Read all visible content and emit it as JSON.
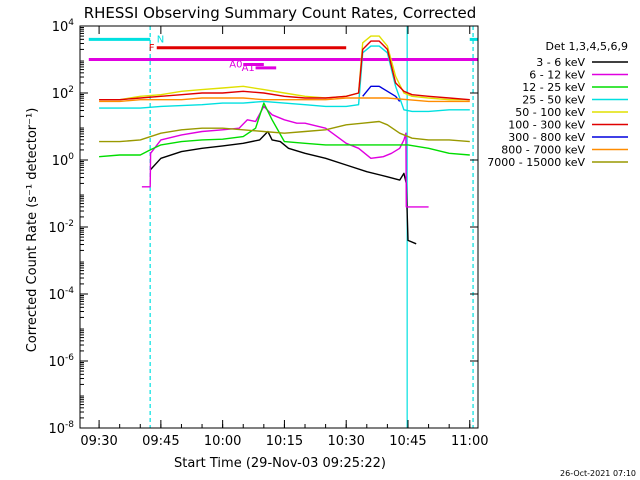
{
  "chart_data": {
    "type": "line",
    "title": "RHESSI Observing Summary Count Rates, Corrected",
    "xlabel": "Start Time (29-Nov-03 09:25:22)",
    "ylabel": "Corrected Count Rate (s⁻¹ detector⁻¹)",
    "footer": "26-Oct-2021 07:10",
    "x_range": [
      "09:25:22",
      "11:02:00"
    ],
    "x_ticks": [
      {
        "time": "09:30",
        "min": 30
      },
      {
        "time": "09:45",
        "min": 45
      },
      {
        "time": "10:00",
        "min": 60
      },
      {
        "time": "10:15",
        "min": 75
      },
      {
        "time": "10:30",
        "min": 90
      },
      {
        "time": "10:45",
        "min": 105
      },
      {
        "time": "11:00",
        "min": 120
      }
    ],
    "y_log": true,
    "y_range_exp": [
      -8,
      4
    ],
    "y_ticks": [
      {
        "base": "10",
        "exp": "4",
        "v": 4
      },
      {
        "base": "10",
        "exp": "2",
        "v": 2
      },
      {
        "base": "10",
        "exp": "0",
        "v": 0
      },
      {
        "base": "10",
        "exp": "-2",
        "v": -2
      },
      {
        "base": "10",
        "exp": "-4",
        "v": -4
      },
      {
        "base": "10",
        "exp": "-6",
        "v": -6
      },
      {
        "base": "10",
        "exp": "-8",
        "v": -8
      }
    ],
    "legend_title": "Det 1,3,4,5,6,9",
    "legend_position": "right",
    "series": [
      {
        "name": "3 - 6 keV",
        "color": "#000000",
        "points": [
          [
            42.4,
            -0.3
          ],
          [
            45,
            0.05
          ],
          [
            50,
            0.25
          ],
          [
            55,
            0.35
          ],
          [
            60,
            0.42
          ],
          [
            65,
            0.5
          ],
          [
            69,
            0.6
          ],
          [
            71,
            0.85
          ],
          [
            72,
            0.6
          ],
          [
            74,
            0.55
          ],
          [
            76,
            0.35
          ],
          [
            80,
            0.2
          ],
          [
            85,
            0.05
          ],
          [
            90,
            -0.15
          ],
          [
            95,
            -0.35
          ],
          [
            100,
            -0.5
          ],
          [
            103,
            -0.6
          ],
          [
            104,
            -0.4
          ],
          [
            104.6,
            -0.7
          ],
          [
            105,
            -2.4
          ],
          [
            107,
            -2.5
          ]
        ]
      },
      {
        "name": "6 - 12 keV",
        "color": "#e000e0",
        "points": [
          [
            40.4,
            -0.8
          ],
          [
            42.4,
            -0.8
          ],
          [
            42.5,
            0.2
          ],
          [
            45,
            0.6
          ],
          [
            50,
            0.75
          ],
          [
            55,
            0.85
          ],
          [
            60,
            0.9
          ],
          [
            64,
            0.95
          ],
          [
            66,
            1.2
          ],
          [
            68,
            1.15
          ],
          [
            70,
            1.6
          ],
          [
            72,
            1.35
          ],
          [
            75,
            1.2
          ],
          [
            78,
            1.1
          ],
          [
            80,
            1.1
          ],
          [
            85,
            0.95
          ],
          [
            90,
            0.5
          ],
          [
            93,
            0.35
          ],
          [
            96,
            0.05
          ],
          [
            99,
            0.1
          ],
          [
            101,
            0.2
          ],
          [
            103,
            0.35
          ],
          [
            104,
            0.6
          ],
          [
            104.5,
            0.8
          ],
          [
            104.6,
            -1.4
          ],
          [
            110,
            -1.4
          ]
        ]
      },
      {
        "name": "12 - 25 keV",
        "color": "#00dd00",
        "points": [
          [
            30,
            0.1
          ],
          [
            35,
            0.15
          ],
          [
            40,
            0.15
          ],
          [
            42.4,
            0.3
          ],
          [
            45,
            0.45
          ],
          [
            50,
            0.55
          ],
          [
            55,
            0.6
          ],
          [
            60,
            0.62
          ],
          [
            65,
            0.7
          ],
          [
            68,
            0.95
          ],
          [
            70,
            1.7
          ],
          [
            72,
            1.2
          ],
          [
            75,
            0.55
          ],
          [
            80,
            0.5
          ],
          [
            85,
            0.45
          ],
          [
            90,
            0.45
          ],
          [
            95,
            0.45
          ],
          [
            100,
            0.45
          ],
          [
            105,
            0.45
          ],
          [
            110,
            0.35
          ],
          [
            115,
            0.2
          ],
          [
            120,
            0.15
          ]
        ]
      },
      {
        "name": "25 - 50 keV",
        "color": "#00e0e0",
        "points": [
          [
            30,
            1.55
          ],
          [
            35,
            1.55
          ],
          [
            40,
            1.55
          ],
          [
            45,
            1.6
          ],
          [
            55,
            1.65
          ],
          [
            60,
            1.7
          ],
          [
            65,
            1.7
          ],
          [
            70,
            1.75
          ],
          [
            75,
            1.7
          ],
          [
            80,
            1.65
          ],
          [
            85,
            1.6
          ],
          [
            90,
            1.6
          ],
          [
            93,
            1.65
          ],
          [
            94,
            3.2
          ],
          [
            96,
            3.4
          ],
          [
            98,
            3.4
          ],
          [
            100,
            3.2
          ],
          [
            102,
            2.2
          ],
          [
            104,
            1.5
          ],
          [
            106,
            1.45
          ],
          [
            110,
            1.45
          ],
          [
            115,
            1.5
          ],
          [
            120,
            1.5
          ]
        ]
      },
      {
        "name": "50 - 100 keV",
        "color": "#e0e000",
        "points": [
          [
            30,
            1.8
          ],
          [
            35,
            1.8
          ],
          [
            40,
            1.9
          ],
          [
            45,
            1.95
          ],
          [
            50,
            2.05
          ],
          [
            55,
            2.1
          ],
          [
            60,
            2.15
          ],
          [
            65,
            2.2
          ],
          [
            70,
            2.1
          ],
          [
            75,
            2.0
          ],
          [
            80,
            1.9
          ],
          [
            85,
            1.85
          ],
          [
            90,
            1.9
          ],
          [
            93,
            2.0
          ],
          [
            94,
            3.5
          ],
          [
            96,
            3.7
          ],
          [
            98,
            3.7
          ],
          [
            100,
            3.4
          ],
          [
            102,
            2.5
          ],
          [
            104,
            2.0
          ],
          [
            106,
            1.9
          ],
          [
            110,
            1.85
          ],
          [
            115,
            1.8
          ],
          [
            120,
            1.8
          ]
        ]
      },
      {
        "name": "100 - 300 keV",
        "color": "#e00000",
        "points": [
          [
            30,
            1.8
          ],
          [
            35,
            1.8
          ],
          [
            40,
            1.85
          ],
          [
            45,
            1.9
          ],
          [
            50,
            1.95
          ],
          [
            55,
            2.0
          ],
          [
            60,
            2.0
          ],
          [
            65,
            2.05
          ],
          [
            70,
            2.0
          ],
          [
            75,
            1.9
          ],
          [
            80,
            1.85
          ],
          [
            85,
            1.85
          ],
          [
            90,
            1.9
          ],
          [
            93,
            2.0
          ],
          [
            94,
            3.3
          ],
          [
            96,
            3.55
          ],
          [
            98,
            3.55
          ],
          [
            100,
            3.3
          ],
          [
            102,
            2.3
          ],
          [
            104,
            2.05
          ],
          [
            106,
            1.95
          ],
          [
            110,
            1.9
          ],
          [
            115,
            1.85
          ],
          [
            120,
            1.8
          ]
        ]
      },
      {
        "name": "300 - 800 keV",
        "color": "#0000dd",
        "points": [
          [
            94,
            1.9
          ],
          [
            96,
            2.2
          ],
          [
            98,
            2.2
          ],
          [
            100,
            2.05
          ],
          [
            102,
            1.9
          ],
          [
            103,
            1.75
          ]
        ]
      },
      {
        "name": "800 - 7000 keV",
        "color": "#ff8c00",
        "points": [
          [
            30,
            1.75
          ],
          [
            35,
            1.75
          ],
          [
            40,
            1.8
          ],
          [
            45,
            1.8
          ],
          [
            50,
            1.8
          ],
          [
            55,
            1.85
          ],
          [
            60,
            1.85
          ],
          [
            65,
            1.85
          ],
          [
            70,
            1.8
          ],
          [
            75,
            1.8
          ],
          [
            80,
            1.8
          ],
          [
            85,
            1.8
          ],
          [
            90,
            1.85
          ],
          [
            95,
            1.85
          ],
          [
            100,
            1.85
          ],
          [
            105,
            1.8
          ],
          [
            110,
            1.75
          ],
          [
            115,
            1.75
          ],
          [
            120,
            1.75
          ]
        ]
      },
      {
        "name": "7000 - 15000 keV",
        "color": "#999900",
        "points": [
          [
            30,
            0.55
          ],
          [
            35,
            0.55
          ],
          [
            40,
            0.6
          ],
          [
            45,
            0.8
          ],
          [
            50,
            0.9
          ],
          [
            55,
            0.95
          ],
          [
            60,
            0.95
          ],
          [
            65,
            0.9
          ],
          [
            70,
            0.85
          ],
          [
            75,
            0.8
          ],
          [
            80,
            0.85
          ],
          [
            85,
            0.9
          ],
          [
            90,
            1.05
          ],
          [
            94,
            1.1
          ],
          [
            98,
            1.15
          ],
          [
            100,
            1.05
          ],
          [
            103,
            0.8
          ],
          [
            106,
            0.65
          ],
          [
            110,
            0.6
          ],
          [
            115,
            0.6
          ],
          [
            120,
            0.55
          ]
        ]
      }
    ],
    "state_bars": [
      {
        "label": "N",
        "color": "#00e0e0",
        "segments": [
          [
            27.5,
            42.4
          ],
          [
            120,
            124
          ]
        ],
        "level": 3.6
      },
      {
        "label": "F",
        "color": "#e00000",
        "segments": [
          [
            44,
            90
          ]
        ],
        "level": 3.35
      },
      {
        "label": "",
        "color": "#e000e0",
        "segments": [
          [
            27.5,
            124
          ]
        ],
        "level": 3.0
      },
      {
        "label": "A0",
        "color": "#e000e0",
        "segments": [
          [
            65,
            70
          ]
        ],
        "level": 2.85
      },
      {
        "label": "A1",
        "color": "#e000e0",
        "segments": [
          [
            68,
            73
          ]
        ],
        "level": 2.75
      }
    ],
    "v_markers": [
      {
        "min": 42.4,
        "color": "#00e0e0",
        "style": "dashed"
      },
      {
        "min": 104.8,
        "color": "#00e0e0",
        "style": "solid"
      },
      {
        "min": 120.8,
        "color": "#00e0e0",
        "style": "dashed"
      }
    ],
    "grid": false
  }
}
